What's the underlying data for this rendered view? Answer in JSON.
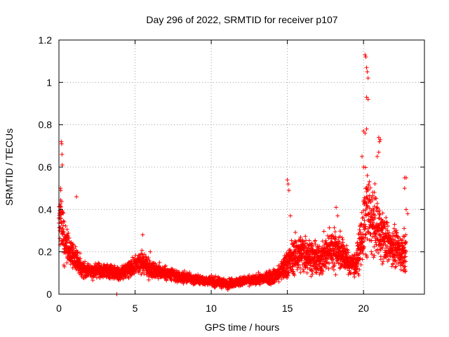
{
  "chart_data": {
    "type": "scatter",
    "title": "Day 296 of 2022, SRMTID for receiver p107",
    "xlabel": "GPS time / hours",
    "ylabel": "SRMTID / TECUs",
    "xlim": [
      0,
      24
    ],
    "ylim": [
      0,
      1.2
    ],
    "xticks": [
      0,
      5,
      10,
      15,
      20
    ],
    "xtick_labels": [
      "0",
      "5",
      "10",
      "15",
      "20"
    ],
    "yticks": [
      0,
      0.2,
      0.4,
      0.6,
      0.8,
      1,
      1.2
    ],
    "ytick_labels": [
      "0",
      "0.2",
      "0.4",
      "0.6",
      "0.8",
      "1",
      "1.2"
    ],
    "grid": true,
    "marker": "+",
    "color": "#ff0000",
    "series": [
      {
        "name": "SRMTID",
        "profile_hours": [
          0,
          0.1,
          0.3,
          0.6,
          1.0,
          1.5,
          2.0,
          3.0,
          4.0,
          5.0,
          5.5,
          6.0,
          7.0,
          8.0,
          9.0,
          10.0,
          11.0,
          12.0,
          13.0,
          14.0,
          14.5,
          15.0,
          15.5,
          16.0,
          17.0,
          18.0,
          18.5,
          19.0,
          19.5,
          20.0,
          20.2,
          20.5,
          21.0,
          21.5,
          22.0,
          22.5,
          22.8
        ],
        "profile_median": [
          0.38,
          0.4,
          0.26,
          0.22,
          0.17,
          0.13,
          0.11,
          0.11,
          0.1,
          0.13,
          0.15,
          0.12,
          0.1,
          0.08,
          0.07,
          0.06,
          0.05,
          0.06,
          0.07,
          0.08,
          0.1,
          0.15,
          0.18,
          0.2,
          0.16,
          0.22,
          0.2,
          0.15,
          0.14,
          0.3,
          0.4,
          0.35,
          0.3,
          0.25,
          0.22,
          0.2,
          0.22
        ],
        "profile_spread": [
          0.12,
          0.15,
          0.09,
          0.07,
          0.05,
          0.04,
          0.03,
          0.03,
          0.03,
          0.04,
          0.05,
          0.04,
          0.03,
          0.025,
          0.02,
          0.02,
          0.02,
          0.02,
          0.02,
          0.03,
          0.04,
          0.07,
          0.08,
          0.08,
          0.07,
          0.09,
          0.08,
          0.05,
          0.05,
          0.14,
          0.2,
          0.15,
          0.12,
          0.1,
          0.08,
          0.08,
          0.1
        ],
        "outliers": [
          [
            0.15,
            0.72
          ],
          [
            0.18,
            0.71
          ],
          [
            0.2,
            0.66
          ],
          [
            0.22,
            0.61
          ],
          [
            0.1,
            0.5
          ],
          [
            0.12,
            0.49
          ],
          [
            1.15,
            0.46
          ],
          [
            3.8,
            0.0
          ],
          [
            5.5,
            0.28
          ],
          [
            6.0,
            0.2
          ],
          [
            15.0,
            0.54
          ],
          [
            15.05,
            0.52
          ],
          [
            15.1,
            0.49
          ],
          [
            15.2,
            0.37
          ],
          [
            18.2,
            0.41
          ],
          [
            18.3,
            0.37
          ],
          [
            20.1,
            1.13
          ],
          [
            20.15,
            1.12
          ],
          [
            20.2,
            1.07
          ],
          [
            20.25,
            1.05
          ],
          [
            20.3,
            1.02
          ],
          [
            20.2,
            0.93
          ],
          [
            20.3,
            0.92
          ],
          [
            20.0,
            0.77
          ],
          [
            20.1,
            0.76
          ],
          [
            20.2,
            0.78
          ],
          [
            19.9,
            0.65
          ],
          [
            20.0,
            0.6
          ],
          [
            21.0,
            0.74
          ],
          [
            21.05,
            0.72
          ],
          [
            21.1,
            0.73
          ],
          [
            21.0,
            0.67
          ],
          [
            20.9,
            0.65
          ],
          [
            22.7,
            0.55
          ],
          [
            22.8,
            0.55
          ],
          [
            22.7,
            0.5
          ],
          [
            22.8,
            0.4
          ],
          [
            22.9,
            0.38
          ]
        ]
      }
    ]
  }
}
